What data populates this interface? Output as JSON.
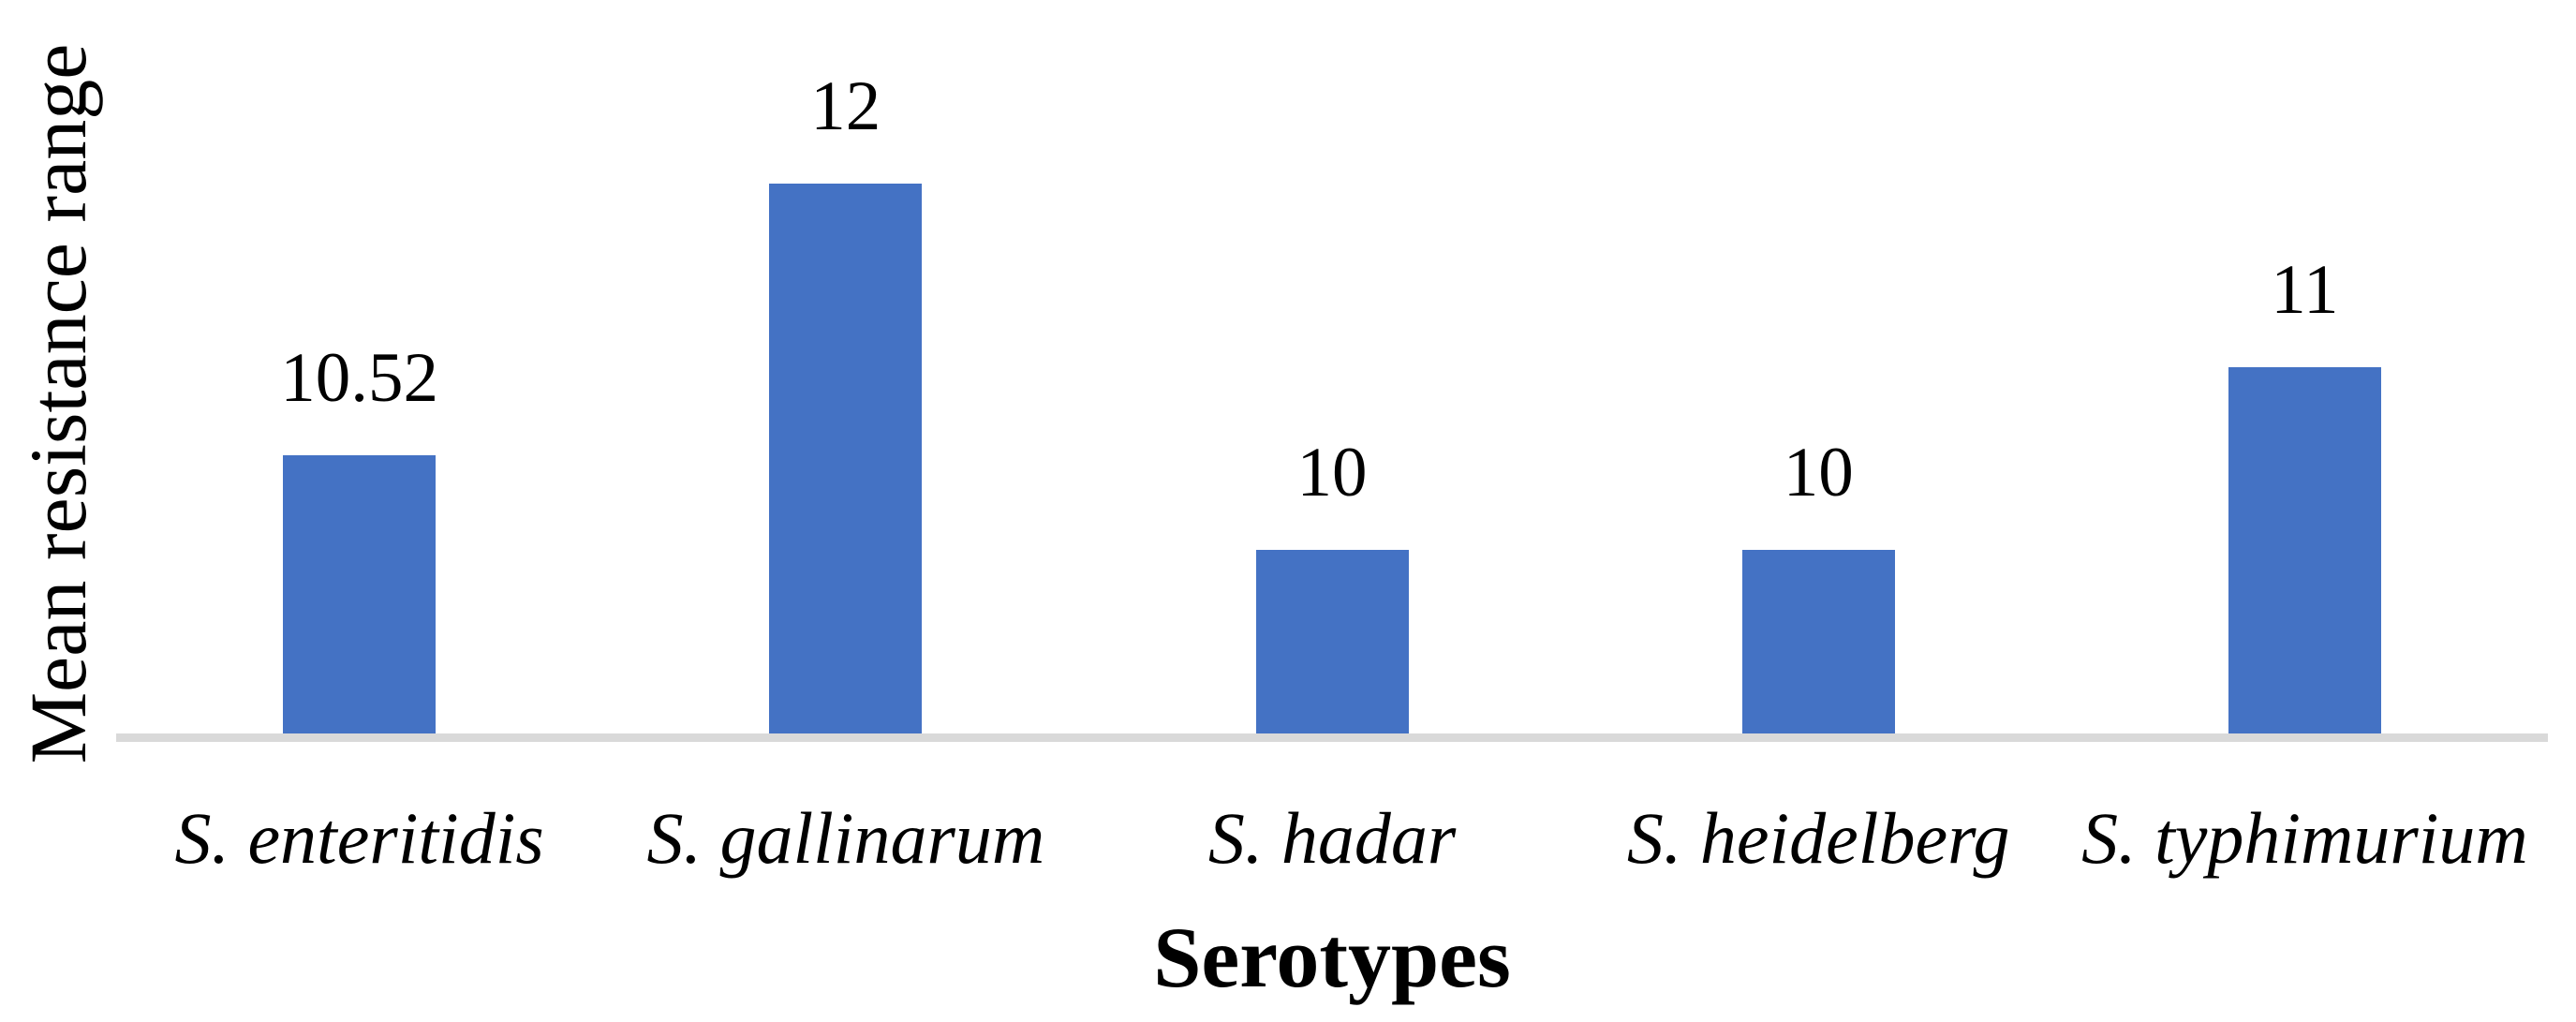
{
  "chart_data": {
    "type": "bar",
    "title": "",
    "categories": [
      "S. enteritidis",
      "S. gallinarum",
      "S. hadar",
      "S. heidelberg",
      "S. typhimurium"
    ],
    "values": [
      10.52,
      12,
      10,
      10,
      11
    ],
    "value_labels": [
      "10.52",
      "12",
      "10",
      "10",
      "11"
    ],
    "xlabel": "Serotypes",
    "ylabel": "Mean resistance range",
    "ylim": [
      9,
      13
    ],
    "y_axis_ticks_visible": false,
    "grid": false,
    "legend": false,
    "bar_color": "#4472C4",
    "axis_line_color": "#D9D9D9",
    "text_color": "#000000",
    "background_color": "#FFFFFF"
  }
}
